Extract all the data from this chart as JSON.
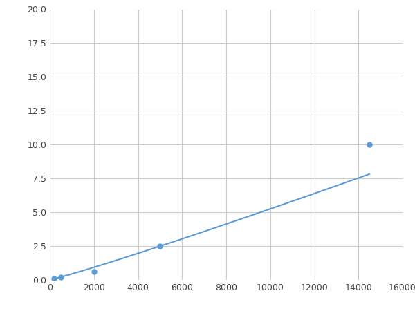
{
  "x_data": [
    200,
    500,
    2000,
    5000,
    14500
  ],
  "y_data": [
    0.1,
    0.2,
    0.6,
    2.5,
    10.0
  ],
  "line_color": "#5b9bd5",
  "marker_color": "#5b9bd5",
  "marker_size": 5,
  "line_width": 1.5,
  "xlim": [
    0,
    16000
  ],
  "ylim": [
    0,
    20.0
  ],
  "x_ticks": [
    0,
    2000,
    4000,
    6000,
    8000,
    10000,
    12000,
    14000,
    16000
  ],
  "y_ticks": [
    0.0,
    2.5,
    5.0,
    7.5,
    10.0,
    12.5,
    15.0,
    17.5,
    20.0
  ],
  "grid_color": "#cccccc",
  "background_color": "#ffffff",
  "figsize": [
    6.0,
    4.5
  ],
  "dpi": 100
}
